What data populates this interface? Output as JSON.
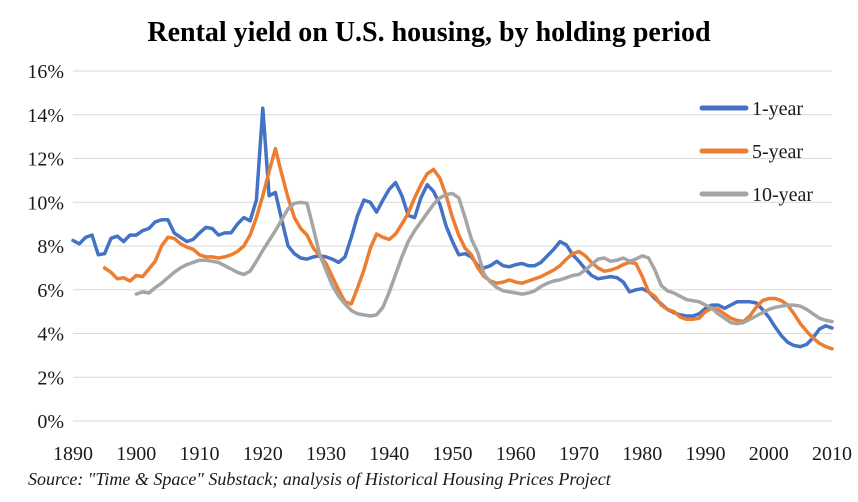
{
  "chart_data": {
    "type": "line",
    "title": "Rental yield on U.S. housing, by holding period",
    "source_note": "Source: \"Time & Space\" Substack; analysis of Historical Housing Prices Project",
    "legend_position": "top-right-inside",
    "grid": "horizontal-only",
    "gridline_color": "#D9D9D9",
    "background_color": "#FFFFFF",
    "x_axis": {
      "range": [
        1890,
        2010
      ],
      "ticks": [
        "1890",
        "1900",
        "1910",
        "1920",
        "1930",
        "1940",
        "1950",
        "1960",
        "1970",
        "1980",
        "1990",
        "2000",
        "2010"
      ],
      "tick_years": [
        1890,
        1900,
        1910,
        1920,
        1930,
        1940,
        1950,
        1960,
        1970,
        1980,
        1990,
        2000,
        2010
      ]
    },
    "y_axis": {
      "range_pct": [
        0,
        16
      ],
      "ticks_bottom_to_top": [
        "0%",
        "2%",
        "4%",
        "6%",
        "8%",
        "10%",
        "12%",
        "14%",
        "16%"
      ],
      "format": "percent"
    },
    "series": [
      {
        "name": "1-year",
        "color": "#4472C4",
        "start_year": 1890,
        "values": [
          8.25,
          8.1,
          8.4,
          8.5,
          7.6,
          7.65,
          8.35,
          8.45,
          8.2,
          8.5,
          8.5,
          8.7,
          8.8,
          9.1,
          9.2,
          9.2,
          8.6,
          8.4,
          8.2,
          8.3,
          8.6,
          8.85,
          8.8,
          8.5,
          8.6,
          8.6,
          9.0,
          9.3,
          9.15,
          10.1,
          14.3,
          10.3,
          10.45,
          9.2,
          8.0,
          7.65,
          7.45,
          7.4,
          7.5,
          7.55,
          7.5,
          7.4,
          7.25,
          7.5,
          8.4,
          9.4,
          10.1,
          10.0,
          9.55,
          10.1,
          10.6,
          10.9,
          10.3,
          9.4,
          9.3,
          10.2,
          10.8,
          10.5,
          9.9,
          8.9,
          8.2,
          7.6,
          7.65,
          7.5,
          7.1,
          7.0,
          7.1,
          7.3,
          7.1,
          7.05,
          7.15,
          7.2,
          7.1,
          7.1,
          7.25,
          7.55,
          7.85,
          8.2,
          8.05,
          7.6,
          7.3,
          6.95,
          6.65,
          6.5,
          6.55,
          6.6,
          6.55,
          6.35,
          5.9,
          6.0,
          6.05,
          5.9,
          5.6,
          5.35,
          5.1,
          4.95,
          4.85,
          4.8,
          4.8,
          4.9,
          5.15,
          5.3,
          5.3,
          5.15,
          5.3,
          5.45,
          5.45,
          5.45,
          5.4,
          5.1,
          4.75,
          4.3,
          3.9,
          3.6,
          3.45,
          3.4,
          3.5,
          3.8,
          4.2,
          4.35,
          4.25
        ]
      },
      {
        "name": "5-year",
        "color": "#ED7D31",
        "start_year": 1895,
        "values": [
          7.0,
          6.8,
          6.5,
          6.55,
          6.4,
          6.65,
          6.6,
          6.95,
          7.3,
          8.0,
          8.4,
          8.35,
          8.1,
          7.95,
          7.85,
          7.6,
          7.5,
          7.5,
          7.45,
          7.5,
          7.6,
          7.75,
          8.0,
          8.5,
          9.3,
          10.3,
          11.4,
          12.45,
          11.3,
          10.2,
          9.3,
          8.8,
          8.5,
          7.9,
          7.55,
          7.2,
          6.6,
          6.0,
          5.45,
          5.35,
          6.1,
          6.9,
          7.9,
          8.55,
          8.4,
          8.3,
          8.55,
          9.0,
          9.5,
          10.2,
          10.8,
          11.3,
          11.5,
          11.1,
          10.3,
          9.3,
          8.5,
          7.9,
          7.6,
          7.0,
          6.6,
          6.4,
          6.3,
          6.35,
          6.45,
          6.35,
          6.3,
          6.4,
          6.5,
          6.6,
          6.75,
          6.9,
          7.1,
          7.4,
          7.65,
          7.75,
          7.55,
          7.25,
          7.0,
          6.85,
          6.9,
          7.0,
          7.15,
          7.25,
          7.2,
          6.6,
          5.9,
          5.7,
          5.3,
          5.1,
          5.0,
          4.75,
          4.65,
          4.65,
          4.7,
          5.0,
          5.15,
          5.1,
          4.9,
          4.7,
          4.6,
          4.55,
          4.8,
          5.2,
          5.5,
          5.6,
          5.6,
          5.5,
          5.3,
          4.9,
          4.45,
          4.1,
          3.8,
          3.55,
          3.4,
          3.3
        ]
      },
      {
        "name": "10-year",
        "color": "#A5A5A5",
        "start_year": 1900,
        "values": [
          5.8,
          5.9,
          5.85,
          6.1,
          6.3,
          6.55,
          6.8,
          7.0,
          7.15,
          7.25,
          7.35,
          7.35,
          7.3,
          7.25,
          7.1,
          6.95,
          6.8,
          6.7,
          6.85,
          7.3,
          7.8,
          8.25,
          8.7,
          9.2,
          9.7,
          9.95,
          10.0,
          9.95,
          8.8,
          7.6,
          6.9,
          6.2,
          5.7,
          5.35,
          5.05,
          4.9,
          4.85,
          4.8,
          4.85,
          5.2,
          5.9,
          6.7,
          7.5,
          8.2,
          8.7,
          9.1,
          9.5,
          9.9,
          10.2,
          10.35,
          10.4,
          10.2,
          9.3,
          8.3,
          7.7,
          6.7,
          6.35,
          6.1,
          5.95,
          5.9,
          5.85,
          5.8,
          5.85,
          5.95,
          6.15,
          6.3,
          6.4,
          6.45,
          6.55,
          6.65,
          6.7,
          6.9,
          7.15,
          7.4,
          7.45,
          7.3,
          7.35,
          7.45,
          7.3,
          7.4,
          7.55,
          7.45,
          6.9,
          6.2,
          5.95,
          5.85,
          5.7,
          5.55,
          5.5,
          5.45,
          5.3,
          5.15,
          4.9,
          4.7,
          4.5,
          4.45,
          4.5,
          4.65,
          4.8,
          4.95,
          5.1,
          5.2,
          5.25,
          5.3,
          5.3,
          5.25,
          5.1,
          4.9,
          4.7,
          4.6,
          4.55
        ]
      }
    ]
  }
}
